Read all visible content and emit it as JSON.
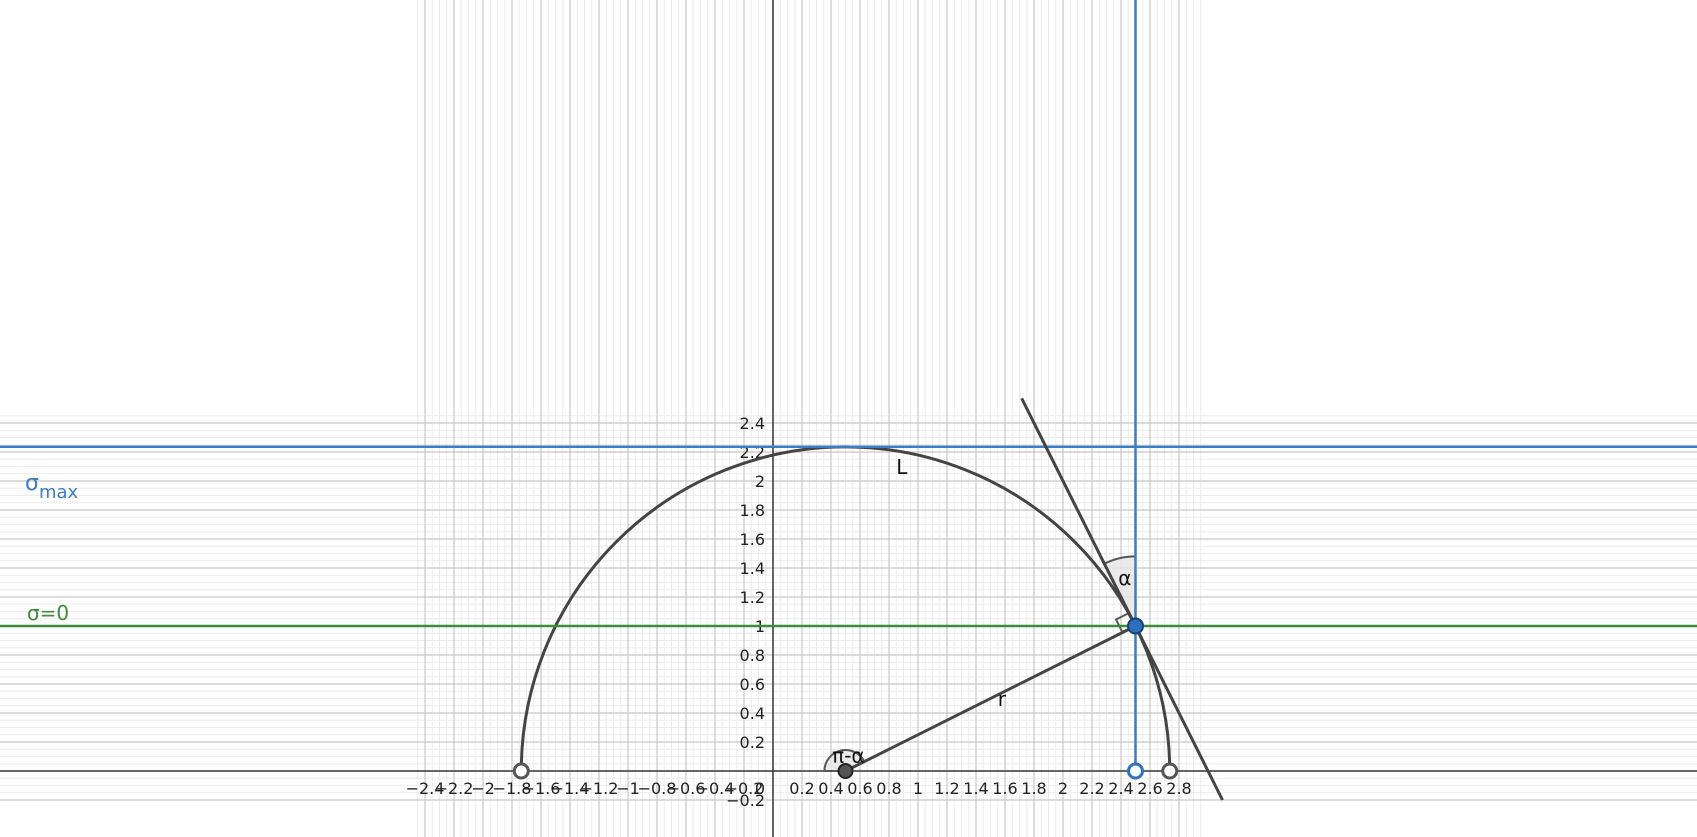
{
  "chart_data": {
    "type": "diagram",
    "x_range": [
      -2.47,
      2.97
    ],
    "y_range": [
      -0.2,
      2.47
    ],
    "grid": true,
    "x_ticks": [
      {
        "v": -2.4,
        "t": "−2.4"
      },
      {
        "v": -2.2,
        "t": "−2.2"
      },
      {
        "v": -2,
        "t": "−2"
      },
      {
        "v": -1.8,
        "t": "−1.8"
      },
      {
        "v": -1.6,
        "t": "−1.6"
      },
      {
        "v": -1.4,
        "t": "−1.4"
      },
      {
        "v": -1.2,
        "t": "−1.2"
      },
      {
        "v": -1,
        "t": "−1"
      },
      {
        "v": -0.8,
        "t": "−0.8"
      },
      {
        "v": -0.6,
        "t": "−0.6"
      },
      {
        "v": -0.4,
        "t": "−0.4"
      },
      {
        "v": -0.2,
        "t": "−0.2"
      },
      {
        "v": 0.2,
        "t": "0.2"
      },
      {
        "v": 0.4,
        "t": "0.4"
      },
      {
        "v": 0.6,
        "t": "0.6"
      },
      {
        "v": 0.8,
        "t": "0.8"
      },
      {
        "v": 1,
        "t": "1"
      },
      {
        "v": 1.2,
        "t": "1.2"
      },
      {
        "v": 1.4,
        "t": "1.4"
      },
      {
        "v": 1.6,
        "t": "1.6"
      },
      {
        "v": 1.8,
        "t": "1.8"
      },
      {
        "v": 2,
        "t": "2"
      },
      {
        "v": 2.2,
        "t": "2.2"
      },
      {
        "v": 2.4,
        "t": "2.4"
      },
      {
        "v": 2.6,
        "t": "2.6"
      },
      {
        "v": 2.8,
        "t": "2.8"
      }
    ],
    "y_ticks": [
      {
        "v": -0.2,
        "t": "−0.2"
      },
      {
        "v": 0.2,
        "t": "0.2"
      },
      {
        "v": 0.4,
        "t": "0.4"
      },
      {
        "v": 0.6,
        "t": "0.6"
      },
      {
        "v": 0.8,
        "t": "0.8"
      },
      {
        "v": 1,
        "t": "1"
      },
      {
        "v": 1.2,
        "t": "1.2"
      },
      {
        "v": 1.4,
        "t": "1.4"
      },
      {
        "v": 1.6,
        "t": "1.6"
      },
      {
        "v": 1.8,
        "t": "1.8"
      },
      {
        "v": 2,
        "t": "2"
      },
      {
        "v": 2.2,
        "t": "2.2"
      },
      {
        "v": 2.4,
        "t": "2.4"
      }
    ],
    "origin_label": "0",
    "sigma_max": {
      "y": 2.236,
      "label_main": "σ",
      "label_sub": "max",
      "color": "#3b7dc4"
    },
    "sigma_zero": {
      "y": 1,
      "label": "σ=0",
      "color": "#3d8b3d"
    },
    "vertical_line": {
      "x": 2.5,
      "color": "#3b7dc4"
    },
    "semicircle": {
      "cx": 0.5,
      "cy": 0,
      "r": 2.236,
      "label": "L",
      "label_at": [
        0.85,
        2.05
      ],
      "color": "#444444"
    },
    "tangent_line": {
      "through": [
        2.5,
        1
      ],
      "slope": -2,
      "color": "#444444"
    },
    "radius_segment": {
      "from": [
        0.5,
        0
      ],
      "to": [
        2.5,
        1
      ],
      "label": "r",
      "label_at": [
        1.55,
        0.45
      ]
    },
    "angle_alpha": {
      "label": "α"
    },
    "angle_pi_minus_alpha": {
      "label": "π-α"
    },
    "points": [
      {
        "name": "center-point",
        "x": 0.5,
        "y": 0,
        "style": "filled-dark"
      },
      {
        "name": "tangent-point",
        "x": 2.5,
        "y": 1,
        "style": "filled-blue"
      },
      {
        "name": "left-endpoint",
        "x": -1.736,
        "y": 0,
        "style": "hollow-dark"
      },
      {
        "name": "right-endpoint",
        "x": 2.736,
        "y": 0,
        "style": "hollow-dark"
      },
      {
        "name": "axis-marker",
        "x": 2.5,
        "y": 0,
        "style": "hollow-blue"
      }
    ]
  }
}
